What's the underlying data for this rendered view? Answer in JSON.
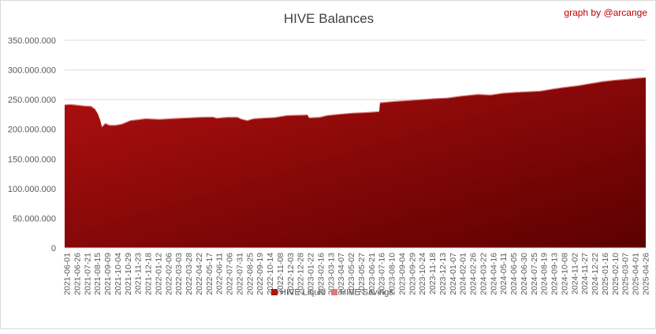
{
  "credit": "graph by @arcange",
  "colors": {
    "liquid_top": "#b01010",
    "liquid_bottom": "#5c0000",
    "savings": "#e07878",
    "grid": "#d9d9d9",
    "text": "#595959",
    "credit": "#c00000"
  },
  "chart_data": {
    "type": "area",
    "title": "HIVE Balances",
    "stacked": true,
    "ylim": [
      0,
      350000000
    ],
    "yticks": [
      0,
      50000000,
      100000000,
      150000000,
      200000000,
      250000000,
      300000000,
      350000000
    ],
    "ytick_labels": [
      "0",
      "50.000.000",
      "100.000.000",
      "150.000.000",
      "200.000.000",
      "250.000.000",
      "300.000.000",
      "350.000.000"
    ],
    "grid": true,
    "legend_position": "bottom",
    "xtick_labels": [
      "2021-06-01",
      "2021-06-26",
      "2021-07-21",
      "2021-08-15",
      "2021-09-09",
      "2021-10-04",
      "2021-10-29",
      "2021-11-23",
      "2021-12-18",
      "2022-01-12",
      "2022-02-06",
      "2022-03-03",
      "2022-03-28",
      "2022-04-22",
      "2022-05-17",
      "2022-06-11",
      "2022-07-06",
      "2022-07-31",
      "2022-08-25",
      "2022-09-19",
      "2022-10-14",
      "2022-11-08",
      "2022-12-03",
      "2022-12-28",
      "2023-01-22",
      "2023-02-16",
      "2023-03-13",
      "2023-04-07",
      "2023-05-02",
      "2023-05-27",
      "2023-06-21",
      "2023-07-16",
      "2023-08-10",
      "2023-09-04",
      "2023-09-29",
      "2023-10-24",
      "2023-11-18",
      "2023-12-13",
      "2024-01-07",
      "2024-02-01",
      "2024-02-26",
      "2024-03-22",
      "2024-04-16",
      "2024-05-11",
      "2024-06-05",
      "2024-06-30",
      "2024-07-25",
      "2024-08-19",
      "2024-09-13",
      "2024-10-08",
      "2024-11-02",
      "2024-11-27",
      "2024-12-22",
      "2025-01-16",
      "2025-02-10",
      "2025-03-07",
      "2025-04-01",
      "2025-04-26"
    ],
    "series": [
      {
        "name": "HIVE Liquid",
        "x": [
          "2021-06-01",
          "2021-06-15",
          "2021-07-01",
          "2021-07-21",
          "2021-08-05",
          "2021-08-15",
          "2021-08-22",
          "2021-08-28",
          "2021-09-01",
          "2021-09-09",
          "2021-09-20",
          "2021-10-04",
          "2021-10-20",
          "2021-11-10",
          "2021-12-05",
          "2021-12-18",
          "2022-01-20",
          "2022-03-01",
          "2022-04-01",
          "2022-05-01",
          "2022-06-01",
          "2022-06-11",
          "2022-07-06",
          "2022-08-01",
          "2022-08-10",
          "2022-08-25",
          "2022-09-10",
          "2022-10-14",
          "2022-11-01",
          "2022-12-01",
          "2023-01-01",
          "2023-01-20",
          "2023-01-25",
          "2023-02-20",
          "2023-03-10",
          "2023-04-07",
          "2023-05-10",
          "2023-06-15",
          "2023-07-16",
          "2023-07-18",
          "2023-08-20",
          "2023-10-01",
          "2023-11-01",
          "2023-12-01",
          "2024-01-01",
          "2024-02-01",
          "2024-03-15",
          "2024-04-16",
          "2024-05-15",
          "2024-06-15",
          "2024-07-15",
          "2024-08-15",
          "2024-09-15",
          "2024-10-15",
          "2024-11-15",
          "2024-12-15",
          "2025-01-15",
          "2025-02-15",
          "2025-03-15",
          "2025-04-15",
          "2025-05-03"
        ],
        "values": [
          240500000,
          241000000,
          240000000,
          238500000,
          238000000,
          233000000,
          225000000,
          214000000,
          203000000,
          209000000,
          206000000,
          206000000,
          208000000,
          214000000,
          216000000,
          217000000,
          216000000,
          217500000,
          218500000,
          219500000,
          220000000,
          218000000,
          219500000,
          219500000,
          216500000,
          214000000,
          217000000,
          218500000,
          219000000,
          222500000,
          223000000,
          223500000,
          218500000,
          219500000,
          222500000,
          224500000,
          226500000,
          227500000,
          229000000,
          244000000,
          246000000,
          248000000,
          249500000,
          251000000,
          252000000,
          255000000,
          258000000,
          257000000,
          260000000,
          261500000,
          262500000,
          263500000,
          267000000,
          270000000,
          272500000,
          276000000,
          279500000,
          282000000,
          283500000,
          285500000,
          286500000
        ]
      },
      {
        "name": "HIVE Savings",
        "x": [
          "2021-06-01",
          "2022-06-01",
          "2023-01-01",
          "2023-07-18",
          "2024-01-01",
          "2024-06-01",
          "2025-05-03"
        ],
        "values": [
          1500000,
          1500000,
          1500000,
          1500000,
          1500000,
          1500000,
          1500000
        ]
      }
    ]
  }
}
